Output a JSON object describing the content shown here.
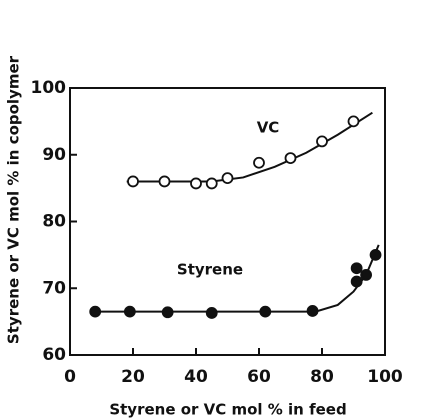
{
  "chart_data": {
    "type": "scatter",
    "xlabel": "Styrene or VC mol % in feed",
    "ylabel": "Styrene or VC mol % in copolymer",
    "annotations": [
      "VC",
      "Styrene"
    ],
    "xlim": [
      0,
      100
    ],
    "xticks": [
      0,
      20,
      40,
      60,
      80,
      100
    ],
    "ylim": [
      60,
      100
    ],
    "yticks": [
      60,
      70,
      80,
      90,
      100
    ],
    "series": [
      {
        "name": "VC",
        "color": "#111111",
        "marker": "open",
        "x": [
          20,
          30,
          40,
          45,
          50,
          60,
          70,
          80,
          90
        ],
        "values": [
          86,
          86,
          85.7,
          85.7,
          86.5,
          88.8,
          89.5,
          92,
          95
        ],
        "curve_x": [
          18,
          45,
          55,
          65,
          75,
          85,
          96
        ],
        "curve_y": [
          86,
          86,
          86.6,
          88.2,
          90.3,
          93,
          96.3
        ]
      },
      {
        "name": "Styrene",
        "color": "#111111",
        "marker": "filled",
        "x": [
          8,
          19,
          31,
          45,
          62,
          77,
          91,
          91,
          94,
          97
        ],
        "values": [
          66.5,
          66.5,
          66.4,
          66.3,
          66.5,
          66.6,
          71,
          73,
          72,
          75
        ],
        "curve_x": [
          8,
          78,
          85,
          90,
          94,
          98
        ],
        "curve_y": [
          66.5,
          66.5,
          67.5,
          69.5,
          72,
          76.5
        ]
      }
    ]
  }
}
